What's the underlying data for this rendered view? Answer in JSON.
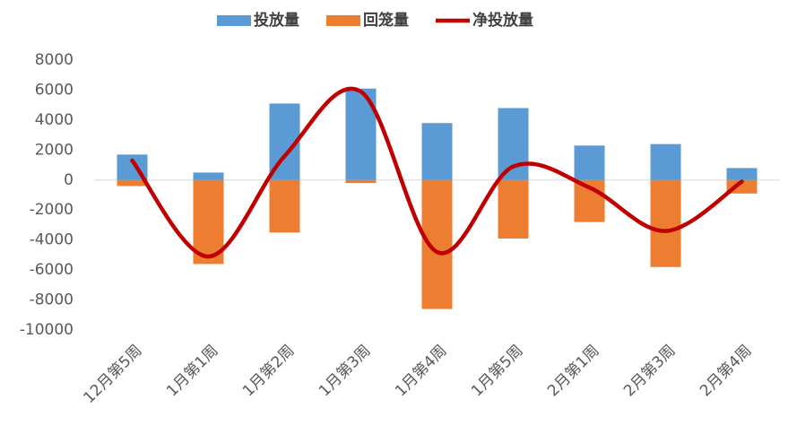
{
  "chart_data": {
    "type": "bar",
    "categories": [
      "12月第5周",
      "1月第1周",
      "1月第2周",
      "1月第3周",
      "1月第4周",
      "1月第5周",
      "2月第1周",
      "2月第3周",
      "2月第4周"
    ],
    "series": [
      {
        "name": "投放量",
        "type": "bar",
        "color": "#5b9bd5",
        "values": [
          1700,
          500,
          5100,
          6100,
          3800,
          4800,
          2300,
          2400,
          800
        ]
      },
      {
        "name": "回笼量",
        "type": "bar",
        "color": "#ed7d31",
        "values": [
          -400,
          -5600,
          -3500,
          -200,
          -8600,
          -3900,
          -2800,
          -5800,
          -900
        ]
      },
      {
        "name": "净投放量",
        "type": "line",
        "smooth": true,
        "color": "#c00000",
        "values": [
          1300,
          -5100,
          1600,
          5900,
          -4800,
          900,
          -500,
          -3400,
          -100
        ]
      }
    ],
    "ylim": [
      -10000,
      8000
    ],
    "yticks": [
      -10000,
      -8000,
      -6000,
      -4000,
      -2000,
      0,
      2000,
      4000,
      6000,
      8000
    ],
    "grid": false,
    "legend": "top"
  }
}
